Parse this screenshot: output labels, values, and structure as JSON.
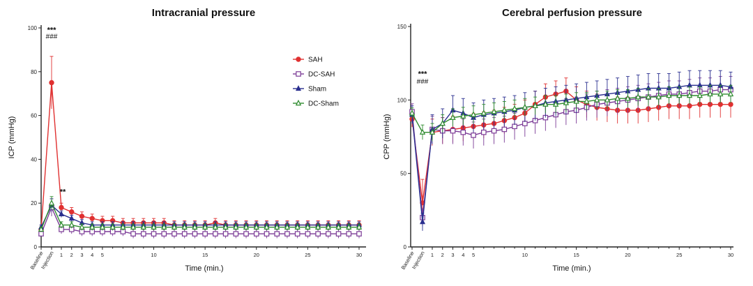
{
  "chart_data": [
    {
      "type": "line",
      "title": "Intracranial pressure",
      "xlabel": "Time (min.)",
      "ylabel": "ICP (mmHg)",
      "ylim": [
        0,
        100
      ],
      "yticks": [
        0,
        20,
        40,
        60,
        80,
        100
      ],
      "x_categories": [
        "Baseline",
        "Injection",
        "1",
        "2",
        "3",
        "4",
        "5",
        "10",
        "15",
        "20",
        "25",
        "30"
      ],
      "grid": false,
      "legend_position": "top-right",
      "annotations": [
        {
          "text": "***",
          "x": "Injection",
          "y": 98
        },
        {
          "text": "###",
          "x": "Injection",
          "y": 95
        },
        {
          "text": "**",
          "x": 1,
          "y": 24
        }
      ],
      "series": [
        {
          "name": "SAH",
          "color": "#e03030",
          "marker": "circle",
          "baseline": 8,
          "injection": 75,
          "injection_err": 12,
          "post": [
            18,
            16,
            14,
            13,
            12,
            12,
            11,
            11,
            11,
            11,
            11,
            10,
            10,
            10,
            10,
            11,
            10,
            10,
            10,
            10,
            10,
            10,
            10,
            10,
            10,
            10,
            10,
            10,
            10,
            10
          ],
          "post_err": 2
        },
        {
          "name": "DC-SAH",
          "color": "#7b3a96",
          "marker": "open-square",
          "baseline": 6,
          "injection": 18,
          "injection_err": 4,
          "post": [
            8,
            8,
            7,
            7,
            7,
            7,
            7,
            6,
            6,
            6,
            6,
            6,
            6,
            6,
            6,
            6,
            6,
            6,
            6,
            6,
            6,
            6,
            6,
            6,
            6,
            6,
            6,
            6,
            6,
            6
          ],
          "post_err": 2
        },
        {
          "name": "Sham",
          "color": "#2a2f8f",
          "marker": "triangle",
          "baseline": 9,
          "injection": 19,
          "injection_err": 3,
          "post": [
            15,
            13,
            11,
            10,
            10,
            10,
            10,
            10,
            10,
            10,
            10,
            10,
            10,
            10,
            10,
            10,
            10,
            10,
            10,
            10,
            10,
            10,
            10,
            10,
            10,
            10,
            10,
            10,
            10,
            10
          ],
          "post_err": 1.5
        },
        {
          "name": "DC-Sham",
          "color": "#2e8b2e",
          "marker": "open-triangle",
          "baseline": 8,
          "injection": 20,
          "injection_err": 3,
          "post": [
            10,
            10,
            9,
            9,
            9,
            9,
            9,
            9,
            9,
            9,
            9,
            9,
            9,
            9,
            9,
            9,
            9,
            9,
            9,
            9,
            9,
            9,
            9,
            9,
            9,
            9,
            9,
            9,
            9,
            9
          ],
          "post_err": 1.5
        }
      ]
    },
    {
      "type": "line",
      "title": "Cerebral perfusion pressure",
      "xlabel": "Time (min.)",
      "ylabel": "CPP (mmHg)",
      "ylim": [
        0,
        150
      ],
      "yticks": [
        0,
        50,
        100,
        150
      ],
      "x_categories": [
        "Baseline",
        "Injection",
        "1",
        "2",
        "3",
        "4",
        "5",
        "10",
        "15",
        "20",
        "25",
        "30"
      ],
      "grid": false,
      "annotations": [
        {
          "text": "***",
          "x": "Injection",
          "y": 116
        },
        {
          "text": "###",
          "x": "Injection",
          "y": 111
        }
      ],
      "series": [
        {
          "name": "SAH",
          "color": "#e03030",
          "marker": "circle",
          "baseline": 87,
          "injection": 30,
          "injection_err": 16,
          "post": [
            78,
            79,
            80,
            81,
            82,
            83,
            84,
            86,
            88,
            91,
            97,
            102,
            104,
            106,
            100,
            97,
            95,
            94,
            93,
            93,
            93,
            94,
            95,
            96,
            96,
            96,
            97,
            97,
            97,
            97
          ],
          "post_err": 9
        },
        {
          "name": "DC-SAH",
          "color": "#7b3a96",
          "marker": "open-square",
          "baseline": 92,
          "injection": 20,
          "injection_err": 6,
          "post": [
            80,
            79,
            79,
            78,
            76,
            78,
            79,
            80,
            82,
            84,
            86,
            88,
            90,
            92,
            93,
            95,
            97,
            98,
            99,
            100,
            101,
            102,
            103,
            104,
            104,
            105,
            106,
            106,
            107,
            107
          ],
          "post_err": 9
        },
        {
          "name": "Sham",
          "color": "#2a2f8f",
          "marker": "triangle",
          "baseline": 90,
          "injection": 17,
          "injection_err": 6,
          "post": [
            80,
            84,
            93,
            91,
            88,
            90,
            91,
            92,
            93,
            95,
            96,
            98,
            99,
            100,
            101,
            102,
            103,
            104,
            105,
            106,
            107,
            108,
            108,
            108,
            109,
            110,
            110,
            110,
            110,
            109
          ],
          "post_err": 10
        },
        {
          "name": "DC-Sham",
          "color": "#2e8b2e",
          "marker": "open-triangle",
          "baseline": 91,
          "injection": 78,
          "injection_err": 5,
          "post": [
            78,
            84,
            88,
            89,
            90,
            91,
            92,
            93,
            94,
            95,
            96,
            97,
            97,
            98,
            99,
            99,
            100,
            100,
            101,
            101,
            102,
            102,
            102,
            103,
            103,
            103,
            103,
            104,
            104,
            104
          ],
          "post_err": 6
        }
      ]
    }
  ]
}
